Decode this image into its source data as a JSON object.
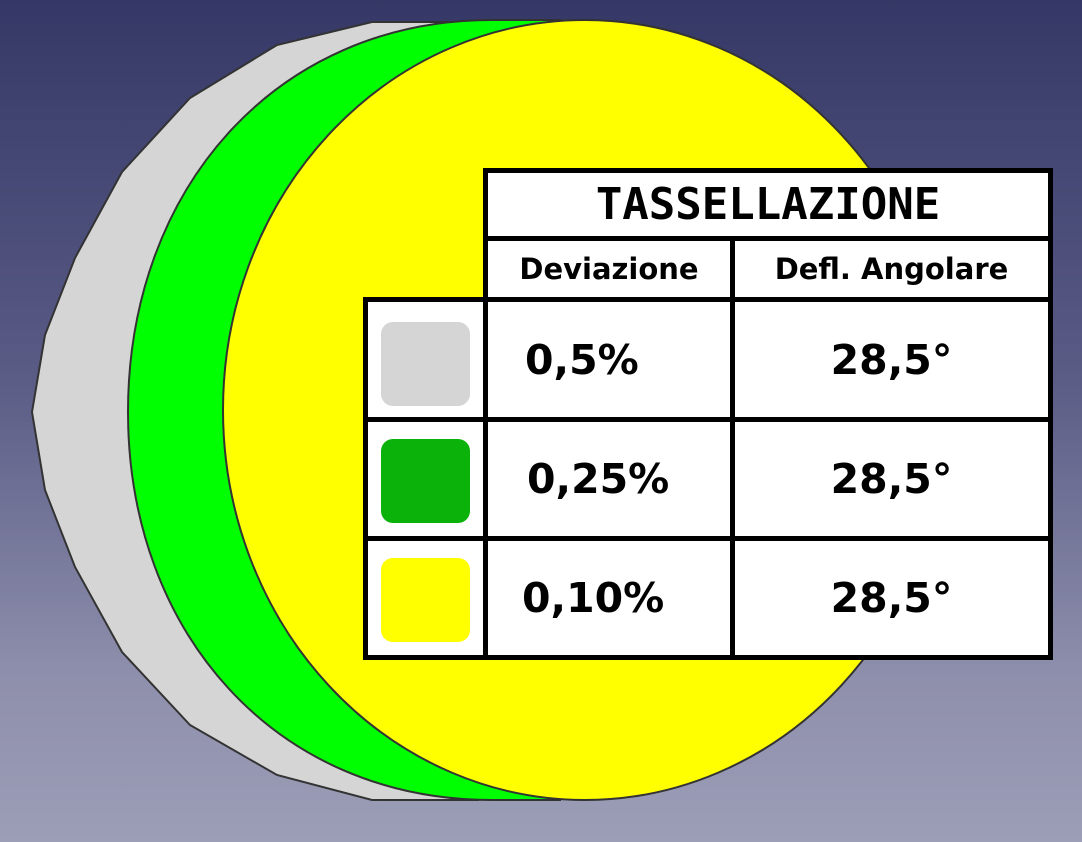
{
  "legend": {
    "title": "TASSELLAZIONE",
    "headers": {
      "deviation": "Deviazione",
      "angular_deflection": "Defl. Angolare"
    },
    "rows": [
      {
        "swatch_color": "#d5d5d5",
        "deviation": "0,5%",
        "angular_deflection": "28,5°"
      },
      {
        "swatch_color": "#0ab20a",
        "deviation": "0,25%",
        "angular_deflection": "28,5°"
      },
      {
        "swatch_color": "#ffff00",
        "deviation": "0,10%",
        "angular_deflection": "28,5°"
      }
    ]
  },
  "colors": {
    "background_top": "#353866",
    "background_bottom": "#9c9db6",
    "mesh_coarse": "#d5d5d5",
    "mesh_medium": "#00ff00",
    "mesh_fine": "#ffff00",
    "outline": "#333333"
  }
}
